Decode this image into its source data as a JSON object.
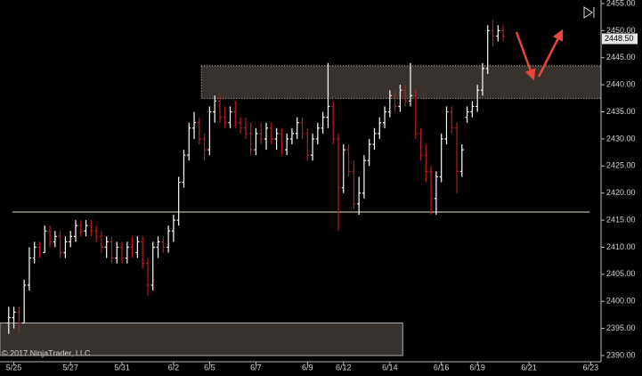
{
  "chart_data": {
    "type": "ohlc",
    "copyright": "© 2017 NinjaTrader, LLC",
    "bars": [
      [
        2396,
        2399,
        2394,
        2397
      ],
      [
        2397,
        2399,
        2395,
        2398
      ],
      [
        2398,
        2399,
        2394,
        2396
      ],
      [
        2396,
        2404,
        2396,
        2403
      ],
      [
        2403,
        2410,
        2402,
        2408
      ],
      [
        2408,
        2411,
        2407,
        2410
      ],
      [
        2410,
        2411,
        2408,
        2409
      ],
      [
        2409,
        2414,
        2409,
        2413
      ],
      [
        2413,
        2414,
        2410,
        2411
      ],
      [
        2411,
        2413,
        2410,
        2412
      ],
      [
        2412,
        2413,
        2408,
        2409
      ],
      [
        2409,
        2412,
        2408,
        2411
      ],
      [
        2411,
        2413,
        2410,
        2412
      ],
      [
        2412,
        2415,
        2411,
        2414
      ],
      [
        2414,
        2415,
        2412,
        2413
      ],
      [
        2413,
        2415,
        2412,
        2414
      ],
      [
        2414,
        2415,
        2412,
        2413
      ],
      [
        2413,
        2414,
        2411,
        2412
      ],
      [
        2412,
        2413,
        2409,
        2410
      ],
      [
        2410,
        2412,
        2408,
        2411
      ],
      [
        2411,
        2412,
        2407,
        2408
      ],
      [
        2408,
        2411,
        2407,
        2410
      ],
      [
        2410,
        2411,
        2407,
        2408
      ],
      [
        2408,
        2411,
        2407,
        2410
      ],
      [
        2410,
        2412,
        2408,
        2409
      ],
      [
        2409,
        2412,
        2408,
        2411
      ],
      [
        2411,
        2412,
        2406,
        2407
      ],
      [
        2407,
        2408,
        2401,
        2403
      ],
      [
        2403,
        2411,
        2402,
        2410
      ],
      [
        2410,
        2412,
        2408,
        2411
      ],
      [
        2411,
        2412,
        2409,
        2410
      ],
      [
        2410,
        2414,
        2409,
        2413
      ],
      [
        2413,
        2416,
        2411,
        2415
      ],
      [
        2415,
        2423,
        2414,
        2422
      ],
      [
        2422,
        2428,
        2421,
        2427
      ],
      [
        2427,
        2433,
        2426,
        2432
      ],
      [
        2432,
        2435,
        2430,
        2433
      ],
      [
        2433,
        2434,
        2429,
        2430
      ],
      [
        2430,
        2431,
        2426,
        2428
      ],
      [
        2428,
        2436,
        2427,
        2435
      ],
      [
        2435,
        2438,
        2433,
        2437
      ],
      [
        2437,
        2438,
        2433,
        2434
      ],
      [
        2434,
        2436,
        2432,
        2433
      ],
      [
        2433,
        2436,
        2432,
        2435
      ],
      [
        2435,
        2437,
        2432,
        2433
      ],
      [
        2433,
        2434,
        2431,
        2432
      ],
      [
        2432,
        2434,
        2430,
        2431
      ],
      [
        2431,
        2433,
        2427,
        2428
      ],
      [
        2428,
        2432,
        2427,
        2431
      ],
      [
        2431,
        2433,
        2429,
        2430
      ],
      [
        2430,
        2433,
        2428,
        2432
      ],
      [
        2432,
        2433,
        2429,
        2430
      ],
      [
        2430,
        2432,
        2428,
        2431
      ],
      [
        2431,
        2432,
        2427,
        2428
      ],
      [
        2428,
        2431,
        2427,
        2430
      ],
      [
        2430,
        2432,
        2429,
        2431
      ],
      [
        2431,
        2434,
        2430,
        2433
      ],
      [
        2433,
        2434,
        2430,
        2431
      ],
      [
        2431,
        2432,
        2426,
        2427
      ],
      [
        2427,
        2431,
        2426,
        2430
      ],
      [
        2430,
        2433,
        2429,
        2432
      ],
      [
        2432,
        2435,
        2431,
        2434
      ],
      [
        2434,
        2444,
        2432,
        2436
      ],
      [
        2436,
        2437,
        2429,
        2430
      ],
      [
        2430,
        2431,
        2413,
        2421
      ],
      [
        2421,
        2429,
        2420,
        2428
      ],
      [
        2428,
        2429,
        2423,
        2424
      ],
      [
        2424,
        2426,
        2417,
        2418
      ],
      [
        2418,
        2423,
        2416,
        2420
      ],
      [
        2420,
        2427,
        2419,
        2426
      ],
      [
        2426,
        2430,
        2425,
        2429
      ],
      [
        2429,
        2432,
        2428,
        2431
      ],
      [
        2431,
        2434,
        2430,
        2433
      ],
      [
        2433,
        2436,
        2432,
        2435
      ],
      [
        2435,
        2439,
        2434,
        2438
      ],
      [
        2438,
        2439,
        2435,
        2436
      ],
      [
        2436,
        2440,
        2435,
        2439
      ],
      [
        2439,
        2440,
        2436,
        2437
      ],
      [
        2437,
        2444,
        2436,
        2438
      ],
      [
        2438,
        2439,
        2430,
        2431
      ],
      [
        2431,
        2432,
        2426,
        2427
      ],
      [
        2427,
        2429,
        2422,
        2424
      ],
      [
        2424,
        2425,
        2416,
        2419
      ],
      [
        2419,
        2424,
        2416,
        2423
      ],
      [
        2423,
        2431,
        2422,
        2430
      ],
      [
        2430,
        2436,
        2429,
        2435
      ],
      [
        2435,
        2436,
        2431,
        2432
      ],
      [
        2432,
        2433,
        2420,
        2424
      ],
      [
        2424,
        2429,
        2423,
        2428
      ],
      [
        2434,
        2436,
        2433,
        2435
      ],
      [
        2435,
        2437,
        2434,
        2436
      ],
      [
        2436,
        2440,
        2435,
        2439
      ],
      [
        2439,
        2444,
        2438,
        2443
      ],
      [
        2443,
        2451,
        2442,
        2450
      ],
      [
        2450,
        2452,
        2447,
        2449
      ],
      [
        2449,
        2451,
        2448,
        2450
      ],
      [
        2450,
        2451,
        2448,
        2449
      ]
    ],
    "up_color": "#ffffff",
    "down_color": "#b81c1c",
    "xlim": [
      -1,
      115
    ],
    "xticks": [
      {
        "value": 1,
        "label": "5/25"
      },
      {
        "value": 12,
        "label": "5/27"
      },
      {
        "value": 22,
        "label": "5/31"
      },
      {
        "value": 32,
        "label": "6/2"
      },
      {
        "value": 39,
        "label": "6/5"
      },
      {
        "value": 48,
        "label": "6/7"
      },
      {
        "value": 58,
        "label": "6/9"
      },
      {
        "value": 65,
        "label": "6/12"
      },
      {
        "value": 74,
        "label": "6/14"
      },
      {
        "value": 84,
        "label": "6/16"
      },
      {
        "value": 91,
        "label": "6/19"
      },
      {
        "value": 101,
        "label": "6/21"
      },
      {
        "value": 113,
        "label": "6/23"
      }
    ],
    "ylim": [
      2390,
      2455
    ],
    "yticks": [
      {
        "value": 2390,
        "label": "2390.00"
      },
      {
        "value": 2395,
        "label": "2395.00"
      },
      {
        "value": 2400,
        "label": "2400.00"
      },
      {
        "value": 2405,
        "label": "2405.00"
      },
      {
        "value": 2410,
        "label": "2410.00"
      },
      {
        "value": 2415,
        "label": "2415.00"
      },
      {
        "value": 2420,
        "label": "2420.00"
      },
      {
        "value": 2425,
        "label": "2425.00"
      },
      {
        "value": 2430,
        "label": "2430.00"
      },
      {
        "value": 2435,
        "label": "2435.00"
      },
      {
        "value": 2440,
        "label": "2440.00"
      },
      {
        "value": 2445,
        "label": "2445.00"
      },
      {
        "value": 2450,
        "label": "2450.00"
      },
      {
        "value": 2455,
        "label": "2455.00"
      }
    ],
    "last_price": {
      "value": 2448.5,
      "label": "2448.50"
    },
    "zones": [
      {
        "low": 2437.5,
        "high": 2443.5,
        "x": [
          37.4,
          115
        ]
      },
      {
        "low": 2390,
        "high": 2396,
        "x": [
          -1.7,
          76.5
        ]
      }
    ],
    "hline": {
      "value": 2416.5,
      "x": [
        0.7,
        112.8
      ]
    }
  }
}
